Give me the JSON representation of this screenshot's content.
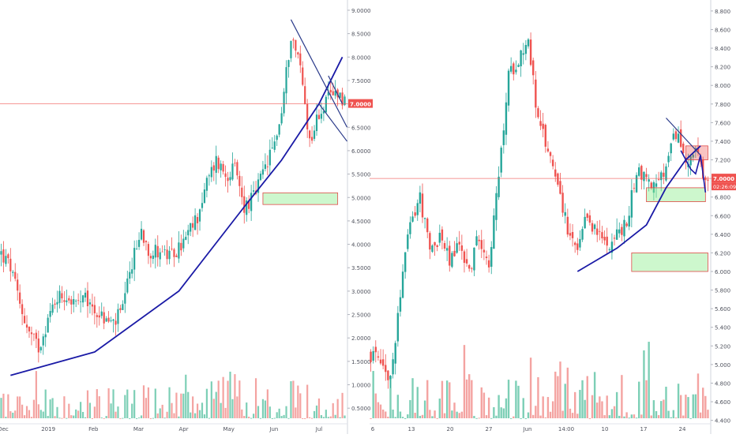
{
  "chart_data": [
    {
      "type": "candlestick",
      "panel": "left",
      "x_ticks": [
        "Dec",
        "2019",
        "Feb",
        "Mar",
        "Apr",
        "May",
        "Jun",
        "Jul"
      ],
      "y_ticks": [
        "0.5000",
        "1.0000",
        "1.5000",
        "2.0000",
        "2.5000",
        "3.0000",
        "3.5000",
        "4.0000",
        "4.5000",
        "5.0000",
        "5.5000",
        "6.0000",
        "6.5000",
        "7.0000",
        "7.5000",
        "8.0000",
        "8.5000",
        "9.0000"
      ],
      "ylim": [
        0.2,
        9.05
      ],
      "y_scale": "linear",
      "price_label": "7.0000",
      "price_line": 7.0,
      "close_path": [
        [
          0,
          3.8
        ],
        [
          4,
          3.5
        ],
        [
          8,
          2.7
        ],
        [
          12,
          2.1
        ],
        [
          16,
          1.8
        ],
        [
          20,
          2.4
        ],
        [
          24,
          2.9
        ],
        [
          28,
          2.9
        ],
        [
          32,
          2.7
        ],
        [
          36,
          2.8
        ],
        [
          40,
          2.6
        ],
        [
          44,
          2.4
        ],
        [
          48,
          2.3
        ],
        [
          52,
          2.6
        ],
        [
          56,
          3.6
        ],
        [
          60,
          4.3
        ],
        [
          64,
          3.8
        ],
        [
          68,
          3.9
        ],
        [
          72,
          3.7
        ],
        [
          76,
          3.9
        ],
        [
          80,
          4.2
        ],
        [
          84,
          4.6
        ],
        [
          88,
          5.3
        ],
        [
          92,
          5.8
        ],
        [
          96,
          5.5
        ],
        [
          100,
          5.6
        ],
        [
          104,
          4.8
        ],
        [
          108,
          5.0
        ],
        [
          112,
          5.5
        ],
        [
          116,
          6.0
        ],
        [
          120,
          6.8
        ],
        [
          124,
          8.5
        ],
        [
          128,
          7.8
        ],
        [
          132,
          6.2
        ],
        [
          136,
          6.8
        ],
        [
          140,
          7.1
        ],
        [
          144,
          7.3
        ],
        [
          146,
          7.1
        ]
      ],
      "curve": [
        [
          4,
          1.2
        ],
        [
          40,
          1.7
        ],
        [
          76,
          3.0
        ],
        [
          104,
          4.8
        ],
        [
          120,
          5.8
        ],
        [
          136,
          7.0
        ],
        [
          146,
          8.0
        ]
      ],
      "trendlines": [
        [
          [
            124,
            8.8
          ],
          [
            148,
            6.5
          ]
        ],
        [
          [
            136,
            7.0
          ],
          [
            148,
            6.2
          ]
        ],
        [
          [
            140,
            7.6
          ],
          [
            146,
            7.0
          ]
        ]
      ],
      "zone": {
        "x": [
          112,
          144
        ],
        "y": [
          4.85,
          5.1
        ]
      },
      "volume_max": 0.55
    },
    {
      "type": "candlestick",
      "panel": "right",
      "x_ticks": [
        "6",
        "13",
        "20",
        "27",
        "Jun",
        "14:00",
        "10",
        "17",
        "24"
      ],
      "y_ticks": [
        "4.400",
        "4.600",
        "4.800",
        "5.000",
        "5.200",
        "5.400",
        "5.600",
        "5.800",
        "6.000",
        "6.200",
        "6.400",
        "6.600",
        "6.800",
        "7.000",
        "7.200",
        "7.400",
        "7.600",
        "7.800",
        "8.000",
        "8.200",
        "8.400",
        "8.600",
        "8.800"
      ],
      "ylim": [
        4.38,
        8.85
      ],
      "y_scale": "linear",
      "price_label": "7.0000",
      "price_time": "02:26:09",
      "price_line": 7.0,
      "close_path": [
        [
          0,
          5.1
        ],
        [
          4,
          5.0
        ],
        [
          8,
          4.8
        ],
        [
          12,
          5.8
        ],
        [
          16,
          6.5
        ],
        [
          20,
          6.8
        ],
        [
          24,
          6.2
        ],
        [
          28,
          6.4
        ],
        [
          32,
          6.1
        ],
        [
          36,
          6.3
        ],
        [
          40,
          6.0
        ],
        [
          44,
          6.4
        ],
        [
          48,
          6.1
        ],
        [
          52,
          7.0
        ],
        [
          56,
          8.1
        ],
        [
          60,
          8.3
        ],
        [
          64,
          8.5
        ],
        [
          68,
          7.6
        ],
        [
          72,
          7.3
        ],
        [
          76,
          7.0
        ],
        [
          80,
          6.4
        ],
        [
          84,
          6.2
        ],
        [
          88,
          6.6
        ],
        [
          92,
          6.4
        ],
        [
          96,
          6.3
        ],
        [
          100,
          6.4
        ],
        [
          104,
          6.5
        ],
        [
          108,
          7.1
        ],
        [
          112,
          7.0
        ],
        [
          116,
          6.9
        ],
        [
          120,
          7.1
        ],
        [
          124,
          7.5
        ],
        [
          128,
          7.2
        ],
        [
          132,
          7.3
        ],
        [
          136,
          6.9
        ]
      ],
      "curve": [
        [
          84,
          6.0
        ],
        [
          100,
          6.25
        ],
        [
          112,
          6.5
        ],
        [
          120,
          6.9
        ],
        [
          128,
          7.2
        ],
        [
          134,
          7.35
        ]
      ],
      "trendlines": [
        [
          [
            120,
            7.65
          ],
          [
            134,
            7.25
          ]
        ]
      ],
      "projection": [
        [
          126,
          7.3
        ],
        [
          130,
          7.1
        ],
        [
          132,
          7.05
        ],
        [
          134,
          7.25
        ],
        [
          136,
          6.85
        ]
      ],
      "zones": [
        {
          "x": [
            128,
            137
          ],
          "y": [
            7.2,
            7.35
          ],
          "color": "red"
        },
        {
          "x": [
            112,
            136
          ],
          "y": [
            6.75,
            6.9
          ],
          "color": "green"
        },
        {
          "x": [
            106,
            137
          ],
          "y": [
            6.0,
            6.2
          ],
          "color": "green"
        }
      ],
      "volume_max": 0.55
    }
  ]
}
